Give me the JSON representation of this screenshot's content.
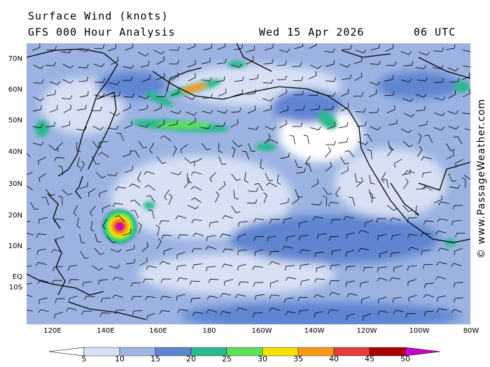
{
  "header": {
    "title": "Surface Wind (knots)",
    "subtitle": "GFS 000 Hour Analysis",
    "date": "Wed 15 Apr 2026",
    "time": "06 UTC"
  },
  "credit": "© www.PassageWeather.com",
  "map": {
    "lat_labels": [
      "70N",
      "60N",
      "50N",
      "40N",
      "30N",
      "20N",
      "10N",
      "EQ",
      "10S"
    ],
    "lon_labels": [
      "120E",
      "140E",
      "160E",
      "180",
      "160W",
      "140W",
      "120W",
      "100W",
      "80W"
    ],
    "colors": {
      "ocean_base": "#8fa8dc",
      "land_line": "#000000",
      "storm_core": "#d01058"
    }
  },
  "colorbar": {
    "labels": [
      "5",
      "10",
      "15",
      "20",
      "25",
      "30",
      "35",
      "40",
      "45",
      "50"
    ],
    "colors": [
      "#ffffff",
      "#d7e0f4",
      "#9fb6e3",
      "#5f85d1",
      "#2bb88e",
      "#5fe05a",
      "#f5e200",
      "#f59a18",
      "#e83a3a",
      "#a60000",
      "#cc00cc"
    ]
  }
}
